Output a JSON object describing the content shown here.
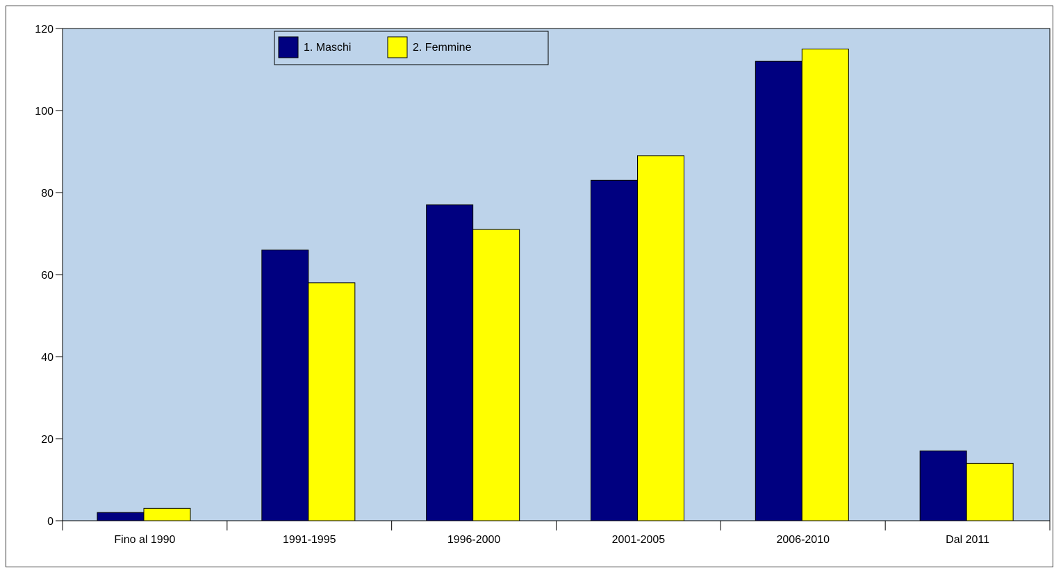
{
  "chart_data": {
    "type": "bar",
    "title": "",
    "xlabel": "",
    "ylabel": "",
    "categories": [
      "Fino al 1990",
      "1991-1995",
      "1996-2000",
      "2001-2005",
      "2006-2010",
      "Dal 2011"
    ],
    "series": [
      {
        "name": "1. Maschi",
        "color": "#000080",
        "values": [
          2,
          66,
          77,
          83,
          112,
          17
        ]
      },
      {
        "name": "2. Femmine",
        "color": "#ffff00",
        "values": [
          3,
          58,
          71,
          89,
          115,
          14
        ]
      }
    ],
    "ylim": [
      0,
      120
    ],
    "yticks": [
      "0",
      "20",
      "40",
      "60",
      "80",
      "100",
      "120"
    ],
    "grid": false,
    "legend": "top-left",
    "plot_background": "#bdd3ea"
  }
}
